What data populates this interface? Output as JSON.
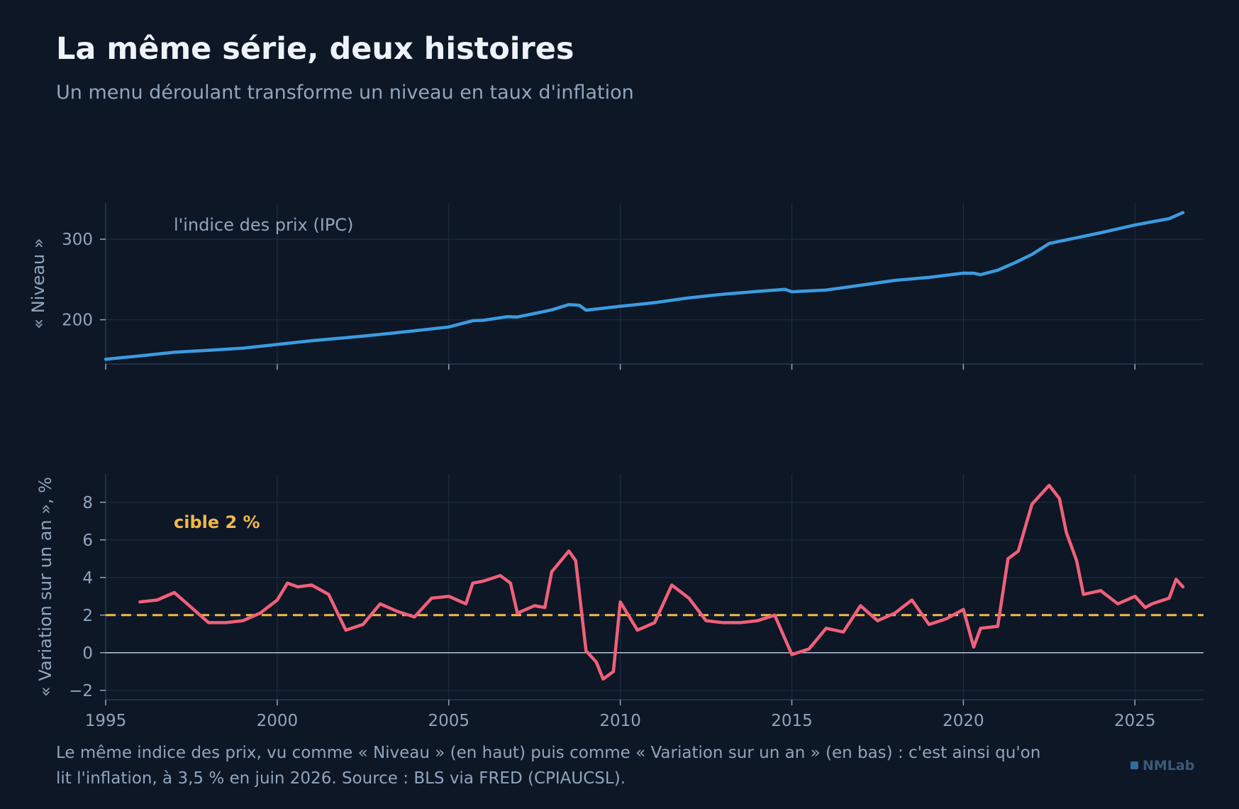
{
  "header": {
    "title": "La même série, deux histoires",
    "subtitle": "Un menu déroulant transforme un niveau en taux d'inflation"
  },
  "caption": "Le même indice des prix, vu comme « Niveau » (en haut) puis comme « Variation sur un an » (en bas) : c'est ainsi qu'on lit l'inflation, à 3,5 % en juin 2026. Source : BLS via FRED (CPIAUCSL).",
  "brand": "NMLab",
  "colors": {
    "background": "#0d1726",
    "level_line": "#3b9be0",
    "yoy_line": "#f0607a",
    "target_line": "#f2b84b",
    "grid": "#1f2d40",
    "zero_line": "#b8c6d6"
  },
  "chart_data": [
    {
      "type": "line",
      "ylabel": "« Niveau »",
      "annotation": "l'indice des prix (IPC)",
      "xlim": [
        1995,
        2027
      ],
      "ylim": [
        145,
        345
      ],
      "x_ticks": [
        1995,
        2000,
        2005,
        2010,
        2015,
        2020,
        2025
      ],
      "y_ticks": [
        200,
        300
      ],
      "series": [
        {
          "x": [
            1995.0,
            1996.0,
            1997.0,
            1998.0,
            1999.0,
            2000.0,
            2001.0,
            2002.0,
            2003.0,
            2004.0,
            2005.0,
            2005.7,
            2006.0,
            2006.7,
            2007.0,
            2008.0,
            2008.5,
            2008.8,
            2009.0,
            2010.0,
            2011.0,
            2012.0,
            2013.0,
            2014.0,
            2014.8,
            2015.0,
            2016.0,
            2017.0,
            2018.0,
            2019.0,
            2020.0,
            2020.3,
            2020.5,
            2021.0,
            2021.5,
            2022.0,
            2022.5,
            2023.0,
            2024.0,
            2025.0,
            2026.0,
            2026.4
          ],
          "values": [
            150.9,
            155.1,
            159.6,
            162.1,
            164.7,
            169.3,
            174.0,
            177.7,
            181.7,
            186.3,
            191.0,
            198.8,
            199.3,
            203.8,
            203.4,
            212.2,
            218.8,
            218.0,
            211.9,
            216.7,
            221.2,
            227.2,
            231.7,
            235.2,
            237.7,
            234.8,
            236.9,
            242.8,
            248.9,
            252.6,
            257.9,
            257.8,
            255.9,
            261.6,
            270.7,
            281.1,
            294.7,
            299.1,
            308.0,
            317.6,
            325.5,
            333.0
          ]
        }
      ]
    },
    {
      "type": "line",
      "ylabel": "« Variation sur un an », %",
      "annotation": "cible 2 %",
      "target_value": 2,
      "xlim": [
        1995,
        2027
      ],
      "ylim": [
        -2.5,
        9.5
      ],
      "x_ticks": [
        1995,
        2000,
        2005,
        2010,
        2015,
        2020,
        2025
      ],
      "y_ticks": [
        -2,
        0,
        2,
        4,
        6,
        8
      ],
      "series": [
        {
          "x": [
            1996.0,
            1996.5,
            1997.0,
            1997.5,
            1998.0,
            1998.5,
            1999.0,
            1999.5,
            2000.0,
            2000.3,
            2000.6,
            2001.0,
            2001.5,
            2002.0,
            2002.5,
            2003.0,
            2003.5,
            2004.0,
            2004.5,
            2005.0,
            2005.5,
            2005.7,
            2006.0,
            2006.5,
            2006.8,
            2007.0,
            2007.5,
            2007.8,
            2008.0,
            2008.5,
            2008.7,
            2009.0,
            2009.3,
            2009.5,
            2009.8,
            2010.0,
            2010.5,
            2011.0,
            2011.5,
            2012.0,
            2012.5,
            2013.0,
            2013.5,
            2014.0,
            2014.5,
            2015.0,
            2015.5,
            2016.0,
            2016.5,
            2017.0,
            2017.5,
            2018.0,
            2018.5,
            2019.0,
            2019.5,
            2020.0,
            2020.3,
            2020.5,
            2021.0,
            2021.3,
            2021.6,
            2022.0,
            2022.5,
            2022.8,
            2023.0,
            2023.3,
            2023.5,
            2024.0,
            2024.5,
            2025.0,
            2025.3,
            2025.5,
            2026.0,
            2026.2,
            2026.4
          ],
          "values": [
            2.7,
            2.8,
            3.2,
            2.4,
            1.6,
            1.6,
            1.7,
            2.1,
            2.8,
            3.7,
            3.5,
            3.6,
            3.1,
            1.2,
            1.5,
            2.6,
            2.2,
            1.9,
            2.9,
            3.0,
            2.6,
            3.7,
            3.8,
            4.1,
            3.7,
            2.1,
            2.5,
            2.4,
            4.3,
            5.4,
            4.9,
            0.1,
            -0.5,
            -1.4,
            -1.0,
            2.7,
            1.2,
            1.6,
            3.6,
            2.9,
            1.7,
            1.6,
            1.6,
            1.7,
            2.0,
            -0.1,
            0.2,
            1.3,
            1.1,
            2.5,
            1.7,
            2.1,
            2.8,
            1.5,
            1.8,
            2.3,
            0.3,
            1.3,
            1.4,
            5.0,
            5.4,
            7.9,
            8.9,
            8.2,
            6.4,
            4.9,
            3.1,
            3.3,
            2.6,
            3.0,
            2.4,
            2.6,
            2.9,
            3.9,
            3.5
          ]
        }
      ]
    }
  ]
}
